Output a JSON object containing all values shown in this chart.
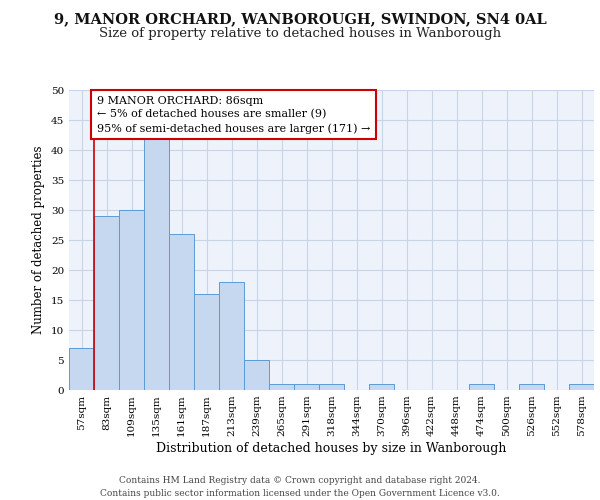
{
  "title_line1": "9, MANOR ORCHARD, WANBOROUGH, SWINDON, SN4 0AL",
  "title_line2": "Size of property relative to detached houses in Wanborough",
  "xlabel": "Distribution of detached houses by size in Wanborough",
  "ylabel": "Number of detached properties",
  "categories": [
    "57sqm",
    "83sqm",
    "109sqm",
    "135sqm",
    "161sqm",
    "187sqm",
    "213sqm",
    "239sqm",
    "265sqm",
    "291sqm",
    "318sqm",
    "344sqm",
    "370sqm",
    "396sqm",
    "422sqm",
    "448sqm",
    "474sqm",
    "500sqm",
    "526sqm",
    "552sqm",
    "578sqm"
  ],
  "values": [
    7,
    29,
    30,
    42,
    26,
    16,
    18,
    5,
    1,
    1,
    1,
    0,
    1,
    0,
    0,
    0,
    1,
    0,
    1,
    0,
    1
  ],
  "bar_color": "#c5d8f0",
  "bar_edge_color": "#5b9bd5",
  "annotation_line_color": "#cc0000",
  "annotation_box_edge_color": "#cc0000",
  "annotation_box_text_line1": "9 MANOR ORCHARD: 86sqm",
  "annotation_box_text_line2": "← 5% of detached houses are smaller (9)",
  "annotation_box_text_line3": "95% of semi-detached houses are larger (171) →",
  "ylim": [
    0,
    50
  ],
  "yticks": [
    0,
    5,
    10,
    15,
    20,
    25,
    30,
    35,
    40,
    45,
    50
  ],
  "grid_color": "#c8d4e8",
  "background_color": "#eef2fa",
  "footer_line1": "Contains HM Land Registry data © Crown copyright and database right 2024.",
  "footer_line2": "Contains public sector information licensed under the Open Government Licence v3.0.",
  "title_fontsize": 10.5,
  "subtitle_fontsize": 9.5,
  "ylabel_fontsize": 8.5,
  "xlabel_fontsize": 9,
  "tick_fontsize": 7.5,
  "annotation_fontsize": 8,
  "footer_fontsize": 6.5,
  "line_x_index": 1.115
}
